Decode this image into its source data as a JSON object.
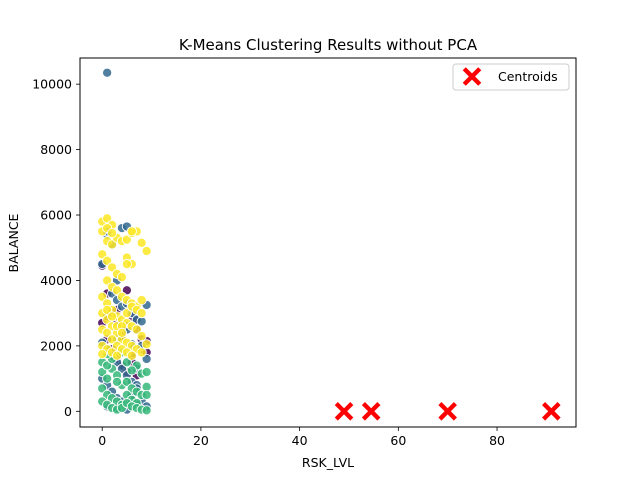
{
  "chart_data": {
    "type": "scatter",
    "title": "K-Means Clustering Results without PCA",
    "xlabel": "RSK_LVL",
    "ylabel": "BALANCE",
    "xlim": [
      -4.5,
      96
    ],
    "ylim": [
      -480,
      10800
    ],
    "xticks": [
      0,
      20,
      40,
      60,
      80
    ],
    "yticks": [
      0,
      2000,
      4000,
      6000,
      8000,
      10000
    ],
    "grid": false,
    "legend": {
      "placement": "top-right",
      "entries": [
        {
          "label": "Centroids",
          "color": "#ff0000",
          "marker": "X"
        }
      ]
    },
    "cluster_colors": [
      "#440154",
      "#31688e",
      "#35b779",
      "#fde725"
    ],
    "series": [
      {
        "cluster": 0,
        "color": "#440154",
        "points": [
          [
            0,
            4450
          ],
          [
            1,
            3600
          ],
          [
            2,
            3000
          ],
          [
            3,
            2700
          ],
          [
            4,
            2300
          ],
          [
            5,
            3700
          ],
          [
            6,
            2900
          ],
          [
            7,
            2500
          ],
          [
            8,
            2200
          ],
          [
            9,
            2150
          ],
          [
            0,
            2700
          ],
          [
            1,
            2200
          ],
          [
            2,
            1900
          ],
          [
            3,
            1600
          ],
          [
            4,
            1400
          ],
          [
            5,
            1200
          ],
          [
            6,
            1700
          ],
          [
            7,
            1100
          ],
          [
            8,
            1900
          ],
          [
            9,
            1800
          ],
          [
            1,
            2900
          ],
          [
            3,
            3100
          ],
          [
            5,
            2600
          ],
          [
            6,
            1500
          ],
          [
            7,
            2800
          ]
        ]
      },
      {
        "cluster": 1,
        "color": "#31688e",
        "points": [
          [
            1,
            10350
          ],
          [
            0,
            4500
          ],
          [
            1,
            5400
          ],
          [
            2,
            5100
          ],
          [
            3,
            4000
          ],
          [
            4,
            5600
          ],
          [
            5,
            5650
          ],
          [
            1,
            5500
          ],
          [
            2,
            3600
          ],
          [
            3,
            3400
          ],
          [
            4,
            3200
          ],
          [
            5,
            3300
          ],
          [
            6,
            3000
          ],
          [
            7,
            2800
          ],
          [
            8,
            2750
          ],
          [
            9,
            3250
          ],
          [
            0,
            2100
          ],
          [
            1,
            1900
          ],
          [
            2,
            1700
          ],
          [
            3,
            1500
          ],
          [
            4,
            1300
          ],
          [
            5,
            1100
          ],
          [
            6,
            900
          ],
          [
            7,
            800
          ],
          [
            8,
            2000
          ],
          [
            9,
            1600
          ],
          [
            0,
            1000
          ],
          [
            1,
            800
          ],
          [
            2,
            600
          ],
          [
            3,
            400
          ],
          [
            4,
            300
          ],
          [
            5,
            200
          ],
          [
            6,
            500
          ],
          [
            7,
            700
          ],
          [
            8,
            300
          ],
          [
            9,
            150
          ],
          [
            1,
            150
          ],
          [
            3,
            100
          ],
          [
            5,
            50
          ],
          [
            7,
            200
          ],
          [
            3,
            2200
          ],
          [
            5,
            2500
          ],
          [
            6,
            2050
          ],
          [
            7,
            1300
          ]
        ]
      },
      {
        "cluster": 2,
        "color": "#35b779",
        "points": [
          [
            0,
            1200
          ],
          [
            1,
            1000
          ],
          [
            2,
            1300
          ],
          [
            3,
            1100
          ],
          [
            4,
            800
          ],
          [
            5,
            900
          ],
          [
            6,
            700
          ],
          [
            7,
            600
          ],
          [
            8,
            1150
          ],
          [
            9,
            1200
          ],
          [
            0,
            700
          ],
          [
            1,
            500
          ],
          [
            2,
            400
          ],
          [
            3,
            300
          ],
          [
            4,
            200
          ],
          [
            5,
            500
          ],
          [
            6,
            350
          ],
          [
            7,
            250
          ],
          [
            8,
            500
          ],
          [
            9,
            750
          ],
          [
            0,
            300
          ],
          [
            1,
            200
          ],
          [
            2,
            100
          ],
          [
            3,
            50
          ],
          [
            4,
            100
          ],
          [
            5,
            250
          ],
          [
            6,
            150
          ],
          [
            7,
            100
          ],
          [
            8,
            50
          ],
          [
            9,
            30
          ],
          [
            0,
            1500
          ],
          [
            1,
            1400
          ],
          [
            2,
            1600
          ],
          [
            3,
            900
          ],
          [
            5,
            1500
          ],
          [
            7,
            1400
          ],
          [
            9,
            500
          ],
          [
            1,
            1750
          ],
          [
            4,
            1800
          ],
          [
            6,
            1250
          ]
        ]
      },
      {
        "cluster": 3,
        "color": "#fde725",
        "points": [
          [
            0,
            5800
          ],
          [
            1,
            5900
          ],
          [
            2,
            5700
          ],
          [
            0,
            5500
          ],
          [
            1,
            5200
          ],
          [
            2,
            5100
          ],
          [
            3,
            5300
          ],
          [
            4,
            5200
          ],
          [
            5,
            5250
          ],
          [
            6,
            5450
          ],
          [
            7,
            5500
          ],
          [
            8,
            5150
          ],
          [
            9,
            4900
          ],
          [
            0,
            4800
          ],
          [
            1,
            4600
          ],
          [
            2,
            4400
          ],
          [
            3,
            4200
          ],
          [
            4,
            4100
          ],
          [
            5,
            4700
          ],
          [
            6,
            4500
          ],
          [
            1,
            4000
          ],
          [
            2,
            3800
          ],
          [
            3,
            3700
          ],
          [
            4,
            3500
          ],
          [
            5,
            3400
          ],
          [
            6,
            3300
          ],
          [
            7,
            3200
          ],
          [
            8,
            3400
          ],
          [
            0,
            3500
          ],
          [
            1,
            3300
          ],
          [
            2,
            3100
          ],
          [
            3,
            2900
          ],
          [
            4,
            2800
          ],
          [
            5,
            2700
          ],
          [
            6,
            2600
          ],
          [
            7,
            2500
          ],
          [
            8,
            2300
          ],
          [
            9,
            2050
          ],
          [
            0,
            3000
          ],
          [
            1,
            2800
          ],
          [
            2,
            2600
          ],
          [
            3,
            2400
          ],
          [
            4,
            2200
          ],
          [
            5,
            2100
          ],
          [
            6,
            2000
          ],
          [
            7,
            1900
          ],
          [
            8,
            1800
          ],
          [
            0,
            2500
          ],
          [
            1,
            2400
          ],
          [
            2,
            2200
          ],
          [
            3,
            2000
          ],
          [
            4,
            1900
          ],
          [
            5,
            1800
          ],
          [
            6,
            1700
          ],
          [
            0,
            2000
          ],
          [
            1,
            1900
          ],
          [
            2,
            1800
          ],
          [
            3,
            1700
          ],
          [
            0,
            1750
          ],
          [
            1,
            5600
          ],
          [
            2,
            5450
          ],
          [
            1,
            3100
          ],
          [
            2,
            2900
          ],
          [
            3,
            2600
          ],
          [
            4,
            2600
          ],
          [
            5,
            3000
          ],
          [
            6,
            3200
          ],
          [
            7,
            3100
          ],
          [
            8,
            3000
          ],
          [
            5,
            4500
          ],
          [
            6,
            5500
          ],
          [
            4,
            2400
          ]
        ]
      }
    ],
    "centroids": [
      [
        49,
        0
      ],
      [
        54.5,
        0
      ],
      [
        70,
        0
      ],
      [
        91,
        0
      ]
    ]
  }
}
